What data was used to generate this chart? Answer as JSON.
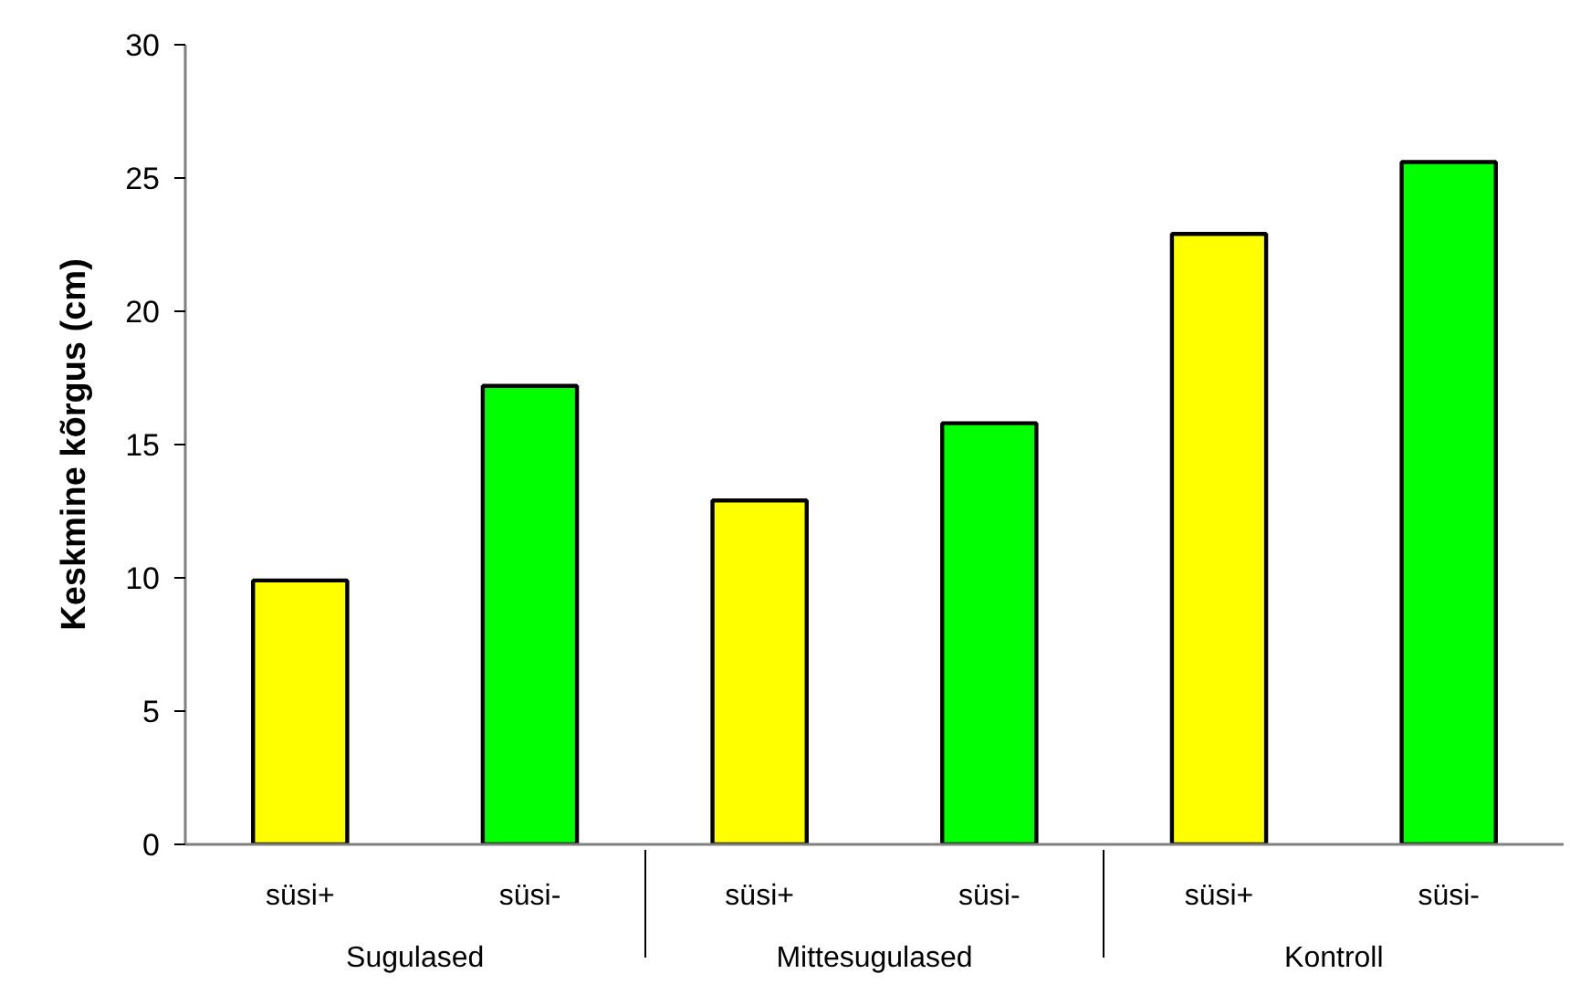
{
  "chart_data": {
    "type": "bar",
    "ylabel": "Keskmine kõrgus (cm)",
    "categories": [
      "Sugulased",
      "Mittesugulased",
      "Kontroll"
    ],
    "series": [
      {
        "name": "süsi+",
        "color": "#ffff00",
        "values": [
          9.9,
          12.9,
          22.9
        ]
      },
      {
        "name": "süsi-",
        "color": "#00ff00",
        "values": [
          17.2,
          15.8,
          25.6
        ]
      }
    ],
    "ylim": [
      0,
      30
    ],
    "yticks": [
      0,
      5,
      10,
      15,
      20,
      25,
      30
    ],
    "grid": false
  }
}
